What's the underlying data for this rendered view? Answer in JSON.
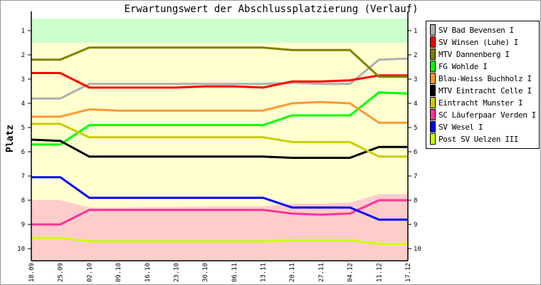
{
  "chart_data": {
    "type": "line",
    "title": "Erwartungswert der Abschlussplatzierung (Verlauf)",
    "ylabel": "Platz",
    "xlabel": "",
    "ylim": [
      0.5,
      10.5
    ],
    "y_inverted": true,
    "yticks": [
      1,
      2,
      3,
      4,
      5,
      6,
      7,
      8,
      9,
      10
    ],
    "categories": [
      "18.09",
      "25.09",
      "02.10",
      "09.10",
      "16.10",
      "23.10",
      "30.10",
      "06.11",
      "13.11",
      "20.11",
      "27.11",
      "04.12",
      "11.12",
      "17.12"
    ],
    "zones": {
      "promotion": {
        "color": "#ccffcc",
        "from": 0.5,
        "to": 1.5
      },
      "middle": {
        "color": "#ffffd0"
      },
      "relegation": {
        "color": "#ffcccc",
        "from_values": [
          8.0,
          8.0,
          8.3,
          8.3,
          8.28,
          8.28,
          8.25,
          8.25,
          8.25,
          8.15,
          8.15,
          8.1,
          7.75,
          7.75
        ],
        "to": 10.5
      }
    },
    "legend_position": "right",
    "series": [
      {
        "name": "SV Bad Bevensen I",
        "color": "#b0b0b0",
        "values": [
          3.8,
          3.8,
          3.2,
          3.2,
          3.2,
          3.2,
          3.2,
          3.2,
          3.2,
          3.15,
          3.2,
          3.2,
          2.2,
          2.15
        ]
      },
      {
        "name": "SV Winsen (Luhe) I",
        "color": "#ff0000",
        "values": [
          2.75,
          2.75,
          3.35,
          3.35,
          3.35,
          3.35,
          3.3,
          3.3,
          3.35,
          3.1,
          3.1,
          3.05,
          2.85,
          2.85
        ]
      },
      {
        "name": "MTV Dannenberg I",
        "color": "#808000",
        "values": [
          2.2,
          2.2,
          1.7,
          1.7,
          1.7,
          1.7,
          1.7,
          1.7,
          1.7,
          1.8,
          1.8,
          1.8,
          2.9,
          2.9
        ]
      },
      {
        "name": "FG Wohlde I",
        "color": "#00ff00",
        "values": [
          5.7,
          5.7,
          4.9,
          4.9,
          4.9,
          4.9,
          4.9,
          4.9,
          4.9,
          4.5,
          4.5,
          4.5,
          3.55,
          3.6
        ]
      },
      {
        "name": "Blau-Weiss Buchholz I",
        "color": "#ff9933",
        "values": [
          4.55,
          4.55,
          4.25,
          4.3,
          4.3,
          4.3,
          4.3,
          4.3,
          4.3,
          4.0,
          3.95,
          4.0,
          4.8,
          4.8
        ]
      },
      {
        "name": "MTV Eintracht Celle I",
        "color": "#000000",
        "values": [
          5.5,
          5.55,
          6.2,
          6.2,
          6.2,
          6.2,
          6.2,
          6.2,
          6.2,
          6.25,
          6.25,
          6.25,
          5.8,
          5.8
        ]
      },
      {
        "name": "Eintracht Munster I",
        "color": "#cccc00",
        "values": [
          4.85,
          4.85,
          5.4,
          5.4,
          5.4,
          5.4,
          5.4,
          5.4,
          5.4,
          5.6,
          5.6,
          5.6,
          6.2,
          6.2
        ]
      },
      {
        "name": "SC Läuferpaar Verden I",
        "color": "#ff3399",
        "values": [
          9.0,
          9.0,
          8.4,
          8.4,
          8.4,
          8.4,
          8.4,
          8.4,
          8.4,
          8.55,
          8.6,
          8.55,
          8.0,
          8.0
        ]
      },
      {
        "name": "SV Wesel I",
        "color": "#0000ff",
        "values": [
          7.05,
          7.05,
          7.9,
          7.9,
          7.9,
          7.9,
          7.9,
          7.9,
          7.9,
          8.3,
          8.3,
          8.3,
          8.8,
          8.8
        ]
      },
      {
        "name": "Post SV Uelzen III",
        "color": "#ccff00",
        "values": [
          9.55,
          9.55,
          9.7,
          9.7,
          9.7,
          9.7,
          9.7,
          9.7,
          9.7,
          9.65,
          9.65,
          9.65,
          9.8,
          9.8
        ]
      }
    ]
  }
}
